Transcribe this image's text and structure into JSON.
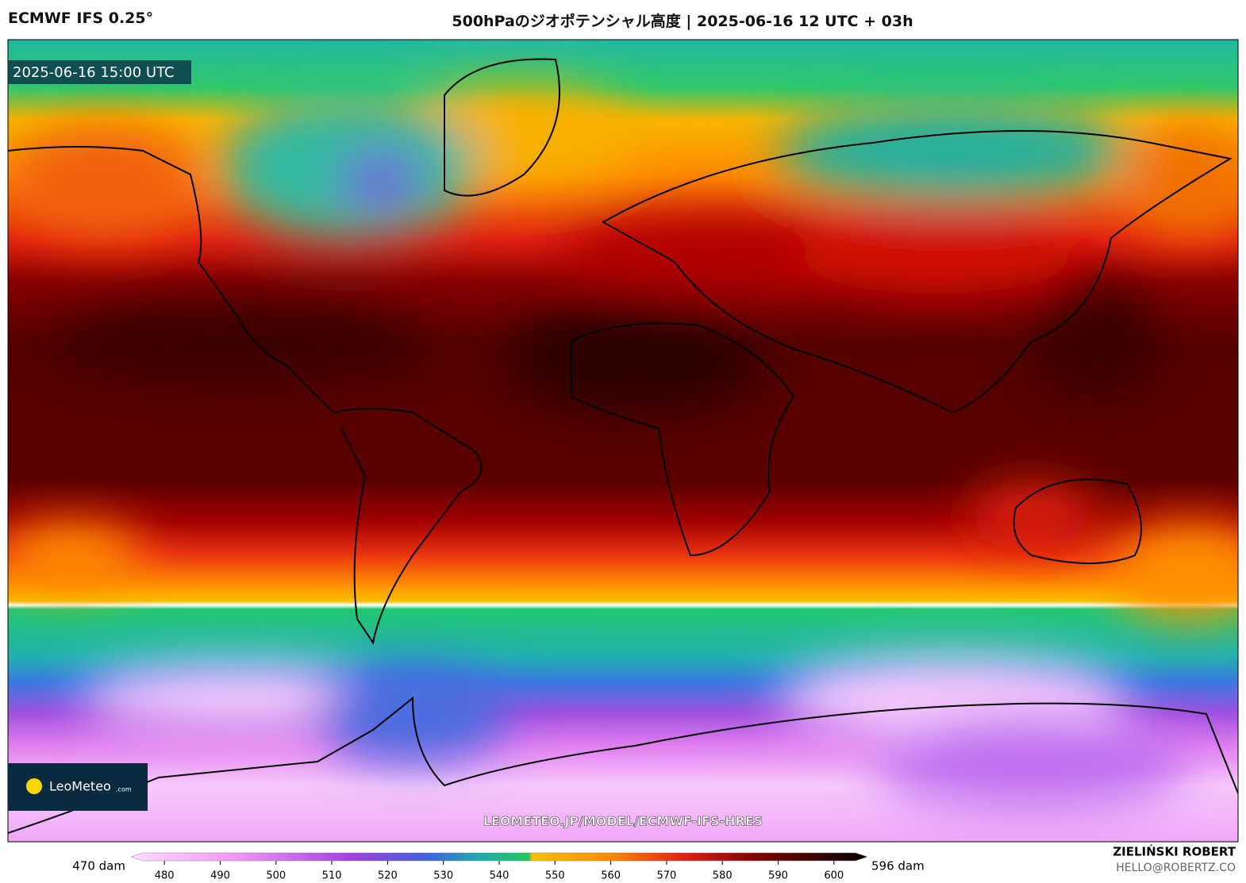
{
  "header": {
    "model": "ECMWF IFS 0.25°",
    "title": "500hPaのジオポテンシャル高度 | 2025-06-16 12 UTC + 03h"
  },
  "map": {
    "valid_time": "2025-06-16 15:00 UTC",
    "logo": "LeoMeteo",
    "logo_suffix": ".com",
    "url": "LEOMETEO.JP/MODEL/ECMWF-IFS-HRES"
  },
  "colorbar": {
    "min_label": "470 dam",
    "max_label": "596 dam",
    "lim": [
      474,
      606
    ],
    "ticks": [
      480,
      490,
      500,
      510,
      520,
      530,
      540,
      550,
      560,
      570,
      580,
      590,
      600
    ]
  },
  "footer": {
    "author": "ZIELIŃSKI ROBERT",
    "email": "HELLO@ROBERTZ.CO"
  }
}
